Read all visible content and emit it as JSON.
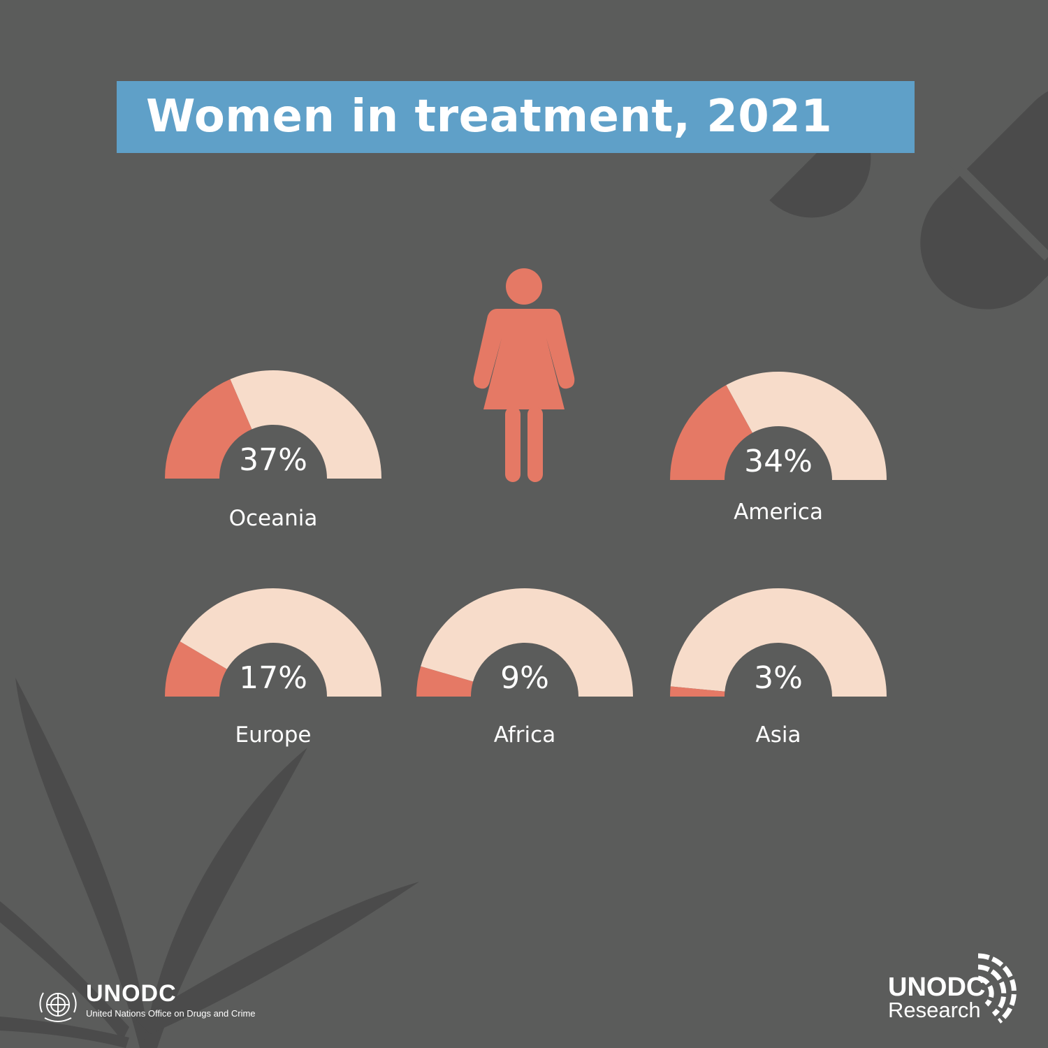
{
  "title": "Women in treatment, 2021",
  "colors": {
    "background": "#5b5c5b",
    "title_bar": "#5fa0c8",
    "share_fill": "#e57965",
    "remainder_fill": "#f7dcca",
    "text": "#ffffff",
    "decor": "#4b4b4b"
  },
  "icons": {
    "woman": "woman-figure-icon",
    "capsule": "capsule-decor-icon",
    "leaf": "cannabis-leaf-decor-icon",
    "un_emblem": "un-emblem-icon",
    "research_arcs": "research-arcs-icon"
  },
  "chart_data": {
    "type": "pie",
    "subtype": "half-donut gauge",
    "unit": "%",
    "title": "Women in treatment, 2021",
    "categories": [
      "Oceania",
      "America",
      "Europe",
      "Africa",
      "Asia"
    ],
    "values": [
      37,
      34,
      17,
      9,
      3
    ],
    "value_labels": [
      "37%",
      "34%",
      "17%",
      "9%",
      "3%"
    ],
    "max": 100
  },
  "footer": {
    "left_logo_name": "UNODC",
    "left_logo_subtitle": "United Nations Office on Drugs and Crime",
    "right_logo_name": "UNODC",
    "right_logo_subtitle": "Research"
  }
}
